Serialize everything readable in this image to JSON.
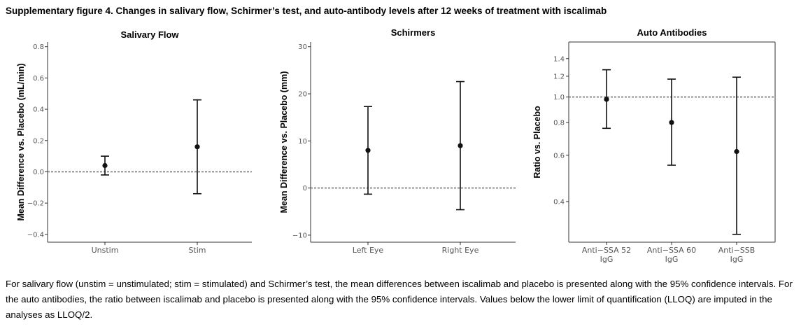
{
  "figure": {
    "title": "Supplementary figure 4. Changes in salivary flow,  Schirmer’s test, and auto-antibody levels after 12 weeks of treatment with iscalimab",
    "caption": "For salivary flow (unstim = unstimulated; stim = stimulated) and Schirmer’s test, the mean differences between iscalimab and placebo is presented along with the 95% confidence intervals. For the auto antibodies, the ratio between iscalimab and placebo is presented along with the 95% confidence intervals. Values below the lower limit of quantification (LLOQ) are imputed in the analyses as LLOQ/2."
  },
  "chart_data": [
    {
      "type": "scatter",
      "title": "Salivary Flow",
      "ylabel": "Mean Difference vs. Placebo (mL/min)",
      "xlabel": "",
      "categories": [
        "Unstim",
        "Stim"
      ],
      "values": [
        0.04,
        0.16
      ],
      "ci_lower": [
        -0.02,
        -0.14
      ],
      "ci_upper": [
        0.1,
        0.46
      ],
      "ylim": [
        -0.45,
        0.83
      ],
      "yticks": [
        -0.4,
        -0.2,
        0.0,
        0.2,
        0.4,
        0.6,
        0.8
      ],
      "ytick_labels": [
        "−0.4",
        "−0.2",
        "0.0",
        "0.2",
        "0.4",
        "0.6",
        "0.8"
      ],
      "reference_line": 0,
      "grid": false
    },
    {
      "type": "scatter",
      "title": "Schirmers",
      "ylabel": "Mean Difference vs. Placebo (mm)",
      "xlabel": "",
      "categories": [
        "Left Eye",
        "Right Eye"
      ],
      "values": [
        8,
        9
      ],
      "ci_lower": [
        -1.3,
        -4.6
      ],
      "ci_upper": [
        17.3,
        22.6
      ],
      "ylim": [
        -11.5,
        31
      ],
      "yticks": [
        -10,
        0,
        10,
        20,
        30
      ],
      "ytick_labels": [
        "−10",
        "0",
        "10",
        "20",
        "30"
      ],
      "reference_line": 0,
      "grid": false
    },
    {
      "type": "scatter",
      "title": "Auto Antibodies",
      "ylabel": "Ratio vs. Placebo",
      "xlabel": "",
      "log_scale": true,
      "categories": [
        [
          "Anti−SSA 52",
          "IgG"
        ],
        [
          "Anti−SSA 60",
          "IgG"
        ],
        [
          "Anti−SSB",
          "IgG"
        ]
      ],
      "values": [
        0.98,
        0.8,
        0.62
      ],
      "ci_lower": [
        0.76,
        0.55,
        0.3
      ],
      "ci_upper": [
        1.27,
        1.17,
        1.19
      ],
      "ylim": [
        0.28,
        1.62
      ],
      "yticks": [
        0.4,
        0.6,
        0.8,
        1.0,
        1.2,
        1.4
      ],
      "ytick_labels": [
        "0.4",
        "0.6",
        "0.8",
        "1.0",
        "1.2",
        "1.4"
      ],
      "reference_line": 1.0,
      "grid": false
    }
  ]
}
